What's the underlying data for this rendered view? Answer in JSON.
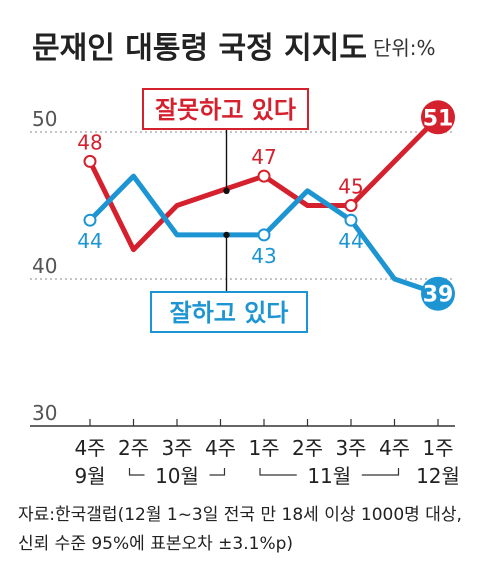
{
  "chart_data": {
    "type": "line",
    "title": "문재인 대통령 국정 지지도",
    "unit": "단위:%",
    "categories": [
      "4주",
      "2주",
      "3주",
      "4주",
      "1주",
      "2주",
      "3주",
      "4주",
      "1주"
    ],
    "month_labels": [
      {
        "text": "9월",
        "from": 0,
        "to": 0
      },
      {
        "text": "10월",
        "from": 1,
        "to": 3
      },
      {
        "text": "11월",
        "from": 4,
        "to": 7
      },
      {
        "text": "12월",
        "from": 8,
        "to": 8
      }
    ],
    "y_ticks": [
      30,
      40,
      50
    ],
    "ylim": [
      30,
      52
    ],
    "series": [
      {
        "name": "잘못하고 있다",
        "color": "#d5212e",
        "values": [
          48,
          42,
          45,
          46,
          47,
          45,
          45,
          48,
          51
        ],
        "labels": [
          {
            "index": 0,
            "text": "48"
          },
          {
            "index": 4,
            "text": "47"
          },
          {
            "index": 6,
            "text": "45"
          },
          {
            "index": 8,
            "text": "51"
          }
        ]
      },
      {
        "name": "잘하고 있다",
        "color": "#1e95d3",
        "values": [
          44,
          47,
          43,
          43,
          43,
          46,
          44,
          40,
          39
        ],
        "labels": [
          {
            "index": 0,
            "text": "44"
          },
          {
            "index": 4,
            "text": "43"
          },
          {
            "index": 6,
            "text": "44"
          },
          {
            "index": 8,
            "text": "39"
          }
        ]
      }
    ],
    "source": [
      "자료:한국갤럽(12월 1~3일 전국 만 18세 이상 1000명 대상,",
      "신뢰 수준 95%에 표본오차 ±3.1%p)"
    ]
  }
}
